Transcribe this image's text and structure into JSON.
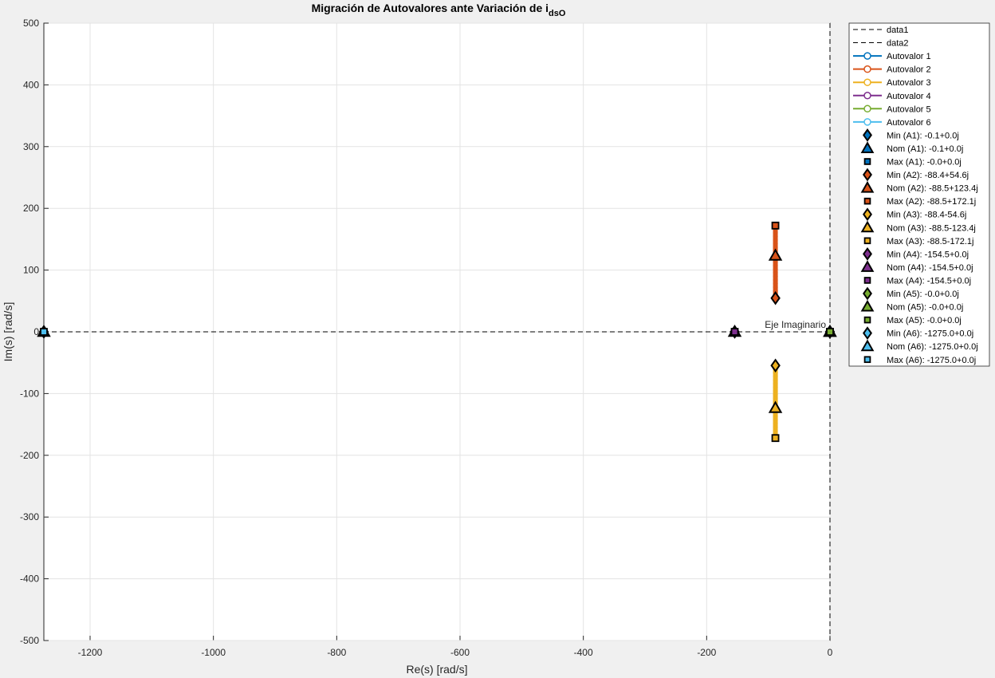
{
  "chart_data": {
    "type": "scatter",
    "title": "Migración de Autovalores ante Variación de i",
    "title_subscript": "dsO",
    "xlabel": "Re(s) [rad/s]",
    "ylabel": "Im(s) [rad/s]",
    "xlim": [
      -1275,
      0
    ],
    "ylim": [
      -500,
      500
    ],
    "xticks": [
      -1200,
      -1000,
      -800,
      -600,
      -400,
      -200,
      0
    ],
    "yticks": [
      -500,
      -400,
      -300,
      -200,
      -100,
      0,
      100,
      200,
      300,
      400,
      500
    ],
    "grid": true,
    "legend_position": "outside-right",
    "annotation": "Eje Imaginario",
    "reference_lines": [
      {
        "name": "data1",
        "type": "horizontal",
        "value": 0,
        "color": "#000000",
        "style": "dashed"
      },
      {
        "name": "data2",
        "type": "vertical",
        "value": 0,
        "color": "#000000",
        "style": "dashed"
      }
    ],
    "series": [
      {
        "name": "Autovalor 1",
        "color": "#0072BD",
        "re": [
          -0.1,
          -0.1,
          -0.0
        ],
        "im": [
          0,
          0,
          0
        ]
      },
      {
        "name": "Autovalor 2",
        "color": "#D95319",
        "re": [
          -88.4,
          -88.5,
          -88.5
        ],
        "im": [
          54.6,
          123.4,
          172.1
        ]
      },
      {
        "name": "Autovalor 3",
        "color": "#EDB120",
        "re": [
          -88.4,
          -88.5,
          -88.5
        ],
        "im": [
          -54.6,
          -123.4,
          -172.1
        ]
      },
      {
        "name": "Autovalor 4",
        "color": "#7E2F8E",
        "re": [
          -154.5,
          -154.5,
          -154.5
        ],
        "im": [
          0,
          0,
          0
        ]
      },
      {
        "name": "Autovalor 5",
        "color": "#77AC30",
        "re": [
          -0.0,
          -0.0,
          -0.0
        ],
        "im": [
          0,
          0,
          0
        ]
      },
      {
        "name": "Autovalor 6",
        "color": "#4DBEEE",
        "re": [
          -1275.0,
          -1275.0,
          -1275.0
        ],
        "im": [
          0,
          0,
          0
        ]
      }
    ],
    "markers": [
      {
        "label": "Min (A1): -0.1+0.0j",
        "series": 0,
        "shape": "diamond",
        "re": -0.1,
        "im": 0.0
      },
      {
        "label": "Nom (A1): -0.1+0.0j",
        "series": 0,
        "shape": "triangle",
        "re": -0.1,
        "im": 0.0
      },
      {
        "label": "Max (A1): -0.0+0.0j",
        "series": 0,
        "shape": "square",
        "re": -0.0,
        "im": 0.0
      },
      {
        "label": "Min (A2): -88.4+54.6j",
        "series": 1,
        "shape": "diamond",
        "re": -88.4,
        "im": 54.6
      },
      {
        "label": "Nom (A2): -88.5+123.4j",
        "series": 1,
        "shape": "triangle",
        "re": -88.5,
        "im": 123.4
      },
      {
        "label": "Max (A2): -88.5+172.1j",
        "series": 1,
        "shape": "square",
        "re": -88.5,
        "im": 172.1
      },
      {
        "label": "Min (A3): -88.4-54.6j",
        "series": 2,
        "shape": "diamond",
        "re": -88.4,
        "im": -54.6
      },
      {
        "label": "Nom (A3): -88.5-123.4j",
        "series": 2,
        "shape": "triangle",
        "re": -88.5,
        "im": -123.4
      },
      {
        "label": "Max (A3): -88.5-172.1j",
        "series": 2,
        "shape": "square",
        "re": -88.5,
        "im": -172.1
      },
      {
        "label": "Min (A4): -154.5+0.0j",
        "series": 3,
        "shape": "diamond",
        "re": -154.5,
        "im": 0.0
      },
      {
        "label": "Nom (A4): -154.5+0.0j",
        "series": 3,
        "shape": "triangle",
        "re": -154.5,
        "im": 0.0
      },
      {
        "label": "Max (A4): -154.5+0.0j",
        "series": 3,
        "shape": "square",
        "re": -154.5,
        "im": 0.0
      },
      {
        "label": "Min (A5): -0.0+0.0j",
        "series": 4,
        "shape": "diamond",
        "re": -0.0,
        "im": 0.0
      },
      {
        "label": "Nom (A5): -0.0+0.0j",
        "series": 4,
        "shape": "triangle",
        "re": -0.0,
        "im": 0.0
      },
      {
        "label": "Max (A5): -0.0+0.0j",
        "series": 4,
        "shape": "square",
        "re": -0.0,
        "im": 0.0
      },
      {
        "label": "Min (A6): -1275.0+0.0j",
        "series": 5,
        "shape": "diamond",
        "re": -1275.0,
        "im": 0.0
      },
      {
        "label": "Nom (A6): -1275.0+0.0j",
        "series": 5,
        "shape": "triangle",
        "re": -1275.0,
        "im": 0.0
      },
      {
        "label": "Max (A6): -1275.0+0.0j",
        "series": 5,
        "shape": "square",
        "re": -1275.0,
        "im": 0.0
      }
    ]
  }
}
